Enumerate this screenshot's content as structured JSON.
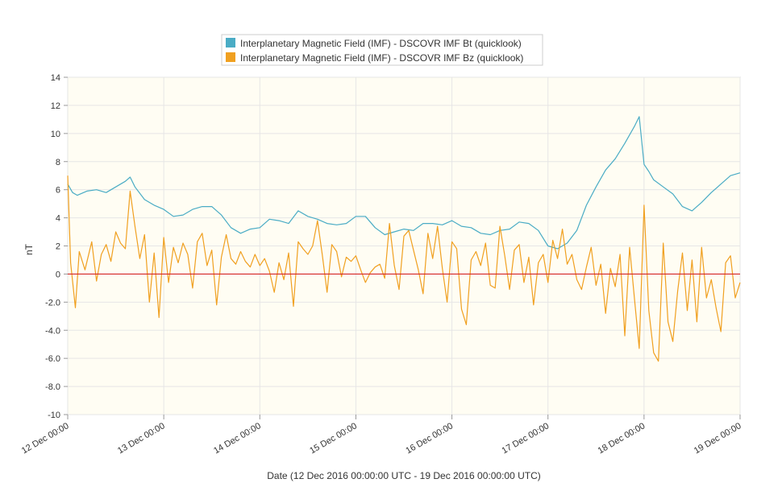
{
  "chart_data": {
    "type": "line",
    "title": "",
    "xlabel": "Date (12 Dec 2016 00:00:00 UTC - 19 Dec 2016 00:00:00 UTC)",
    "ylabel": "nT",
    "ylim": [
      -10,
      14
    ],
    "yticks": [
      "-10",
      "-8.0",
      "-6.0",
      "-4.0",
      "-2.0",
      "0",
      "2",
      "4",
      "6",
      "8",
      "10",
      "12",
      "14"
    ],
    "ytick_values": [
      -10,
      -8,
      -6,
      -4,
      -2,
      0,
      2,
      4,
      6,
      8,
      10,
      12,
      14
    ],
    "xlim": [
      0,
      7
    ],
    "xticks": [
      "12 Dec 00:00",
      "13 Dec 00:00",
      "14 Dec 00:00",
      "15 Dec 00:00",
      "16 Dec 00:00",
      "17 Dec 00:00",
      "18 Dec 00:00",
      "19 Dec 00:00"
    ],
    "xtick_values": [
      0,
      1,
      2,
      3,
      4,
      5,
      6,
      7
    ],
    "grid": true,
    "legend_position": "top-center",
    "background_color": "#fffdf3",
    "zero_line_color": "#d62728",
    "series": [
      {
        "name": "Interplanetary Magnetic Field (IMF) - DSCOVR IMF Bt (quicklook)",
        "color": "#4aacc5",
        "x": [
          0.0,
          0.05,
          0.1,
          0.2,
          0.3,
          0.4,
          0.5,
          0.6,
          0.65,
          0.7,
          0.8,
          0.9,
          1.0,
          1.1,
          1.2,
          1.3,
          1.4,
          1.5,
          1.6,
          1.7,
          1.8,
          1.9,
          2.0,
          2.1,
          2.2,
          2.3,
          2.4,
          2.5,
          2.6,
          2.7,
          2.8,
          2.9,
          3.0,
          3.1,
          3.2,
          3.3,
          3.4,
          3.5,
          3.6,
          3.7,
          3.8,
          3.9,
          4.0,
          4.1,
          4.2,
          4.3,
          4.4,
          4.5,
          4.6,
          4.7,
          4.8,
          4.9,
          5.0,
          5.1,
          5.2,
          5.3,
          5.4,
          5.5,
          5.6,
          5.7,
          5.8,
          5.9,
          5.95,
          6.0,
          6.05,
          6.1,
          6.2,
          6.3,
          6.4,
          6.5,
          6.6,
          6.7,
          6.8,
          6.9,
          7.0
        ],
        "values": [
          6.4,
          5.8,
          5.6,
          5.9,
          6.0,
          5.8,
          6.2,
          6.6,
          6.9,
          6.2,
          5.3,
          4.9,
          4.6,
          4.1,
          4.2,
          4.6,
          4.8,
          4.8,
          4.2,
          3.3,
          2.9,
          3.2,
          3.3,
          3.9,
          3.8,
          3.6,
          4.5,
          4.1,
          3.9,
          3.6,
          3.5,
          3.6,
          4.1,
          4.1,
          3.3,
          2.8,
          3.0,
          3.2,
          3.1,
          3.6,
          3.6,
          3.5,
          3.8,
          3.4,
          3.3,
          2.9,
          2.8,
          3.1,
          3.2,
          3.7,
          3.6,
          3.1,
          2.0,
          1.8,
          2.2,
          3.1,
          4.9,
          6.2,
          7.4,
          8.2,
          9.3,
          10.5,
          11.2,
          7.8,
          7.3,
          6.7,
          6.2,
          5.7,
          4.8,
          4.5,
          5.1,
          5.8,
          6.4,
          7.0,
          7.2
        ]
      },
      {
        "name": "Interplanetary Magnetic Field (IMF) - DSCOVR IMF Bz (quicklook)",
        "color": "#f0a020",
        "x": [
          0.0,
          0.03,
          0.08,
          0.12,
          0.18,
          0.25,
          0.3,
          0.35,
          0.4,
          0.45,
          0.5,
          0.55,
          0.6,
          0.65,
          0.7,
          0.75,
          0.8,
          0.85,
          0.9,
          0.95,
          1.0,
          1.05,
          1.1,
          1.15,
          1.2,
          1.25,
          1.3,
          1.35,
          1.4,
          1.45,
          1.5,
          1.55,
          1.6,
          1.65,
          1.7,
          1.75,
          1.8,
          1.85,
          1.9,
          1.95,
          2.0,
          2.05,
          2.1,
          2.15,
          2.2,
          2.25,
          2.3,
          2.35,
          2.4,
          2.45,
          2.5,
          2.55,
          2.6,
          2.65,
          2.7,
          2.75,
          2.8,
          2.85,
          2.9,
          2.95,
          3.0,
          3.05,
          3.1,
          3.15,
          3.2,
          3.25,
          3.3,
          3.35,
          3.4,
          3.45,
          3.5,
          3.55,
          3.6,
          3.65,
          3.7,
          3.75,
          3.8,
          3.85,
          3.9,
          3.95,
          4.0,
          4.05,
          4.1,
          4.15,
          4.2,
          4.25,
          4.3,
          4.35,
          4.4,
          4.45,
          4.5,
          4.55,
          4.6,
          4.65,
          4.7,
          4.75,
          4.8,
          4.85,
          4.9,
          4.95,
          5.0,
          5.05,
          5.1,
          5.15,
          5.2,
          5.25,
          5.3,
          5.35,
          5.4,
          5.45,
          5.5,
          5.55,
          5.6,
          5.65,
          5.7,
          5.75,
          5.8,
          5.85,
          5.9,
          5.95,
          6.0,
          6.05,
          6.1,
          6.15,
          6.2,
          6.25,
          6.3,
          6.35,
          6.4,
          6.45,
          6.5,
          6.55,
          6.6,
          6.65,
          6.7,
          6.75,
          6.8,
          6.85,
          6.9,
          6.95,
          7.0
        ],
        "values": [
          7.0,
          0.8,
          -2.4,
          1.6,
          0.3,
          2.3,
          -0.5,
          1.4,
          2.1,
          0.9,
          3.0,
          2.2,
          1.8,
          5.9,
          3.4,
          1.1,
          2.8,
          -2.0,
          1.5,
          -3.1,
          2.6,
          -0.6,
          1.9,
          0.8,
          2.2,
          1.4,
          -1.0,
          2.3,
          2.9,
          0.6,
          1.7,
          -2.2,
          1.2,
          2.8,
          1.1,
          0.7,
          1.6,
          0.9,
          0.5,
          1.4,
          0.6,
          1.1,
          0.2,
          -1.3,
          0.8,
          -0.4,
          1.5,
          -2.3,
          2.3,
          1.8,
          1.4,
          2.0,
          3.8,
          1.4,
          -1.3,
          2.1,
          1.6,
          -0.2,
          1.2,
          0.9,
          1.3,
          0.3,
          -0.6,
          0.1,
          0.5,
          0.7,
          -0.3,
          3.6,
          0.6,
          -1.1,
          2.7,
          3.1,
          1.7,
          0.3,
          -1.4,
          2.9,
          1.1,
          3.4,
          0.4,
          -2.0,
          2.3,
          1.8,
          -2.5,
          -3.6,
          1.0,
          1.6,
          0.6,
          2.2,
          -0.8,
          -1.0,
          3.4,
          1.3,
          -1.1,
          1.7,
          2.1,
          -0.6,
          1.2,
          -2.2,
          0.8,
          1.4,
          -0.6,
          2.4,
          1.1,
          3.2,
          0.7,
          1.4,
          -0.4,
          -1.1,
          0.5,
          1.9,
          -0.8,
          0.7,
          -2.8,
          0.4,
          -0.9,
          1.4,
          -4.4,
          1.9,
          -1.7,
          -5.3,
          4.9,
          -2.6,
          -5.6,
          -6.2,
          2.2,
          -3.4,
          -4.8,
          -1.2,
          1.5,
          -2.6,
          1.0,
          -3.4,
          1.9,
          -1.7,
          -0.4,
          -2.4,
          -4.1,
          0.8,
          1.3,
          -1.7,
          -0.6
        ]
      }
    ]
  }
}
